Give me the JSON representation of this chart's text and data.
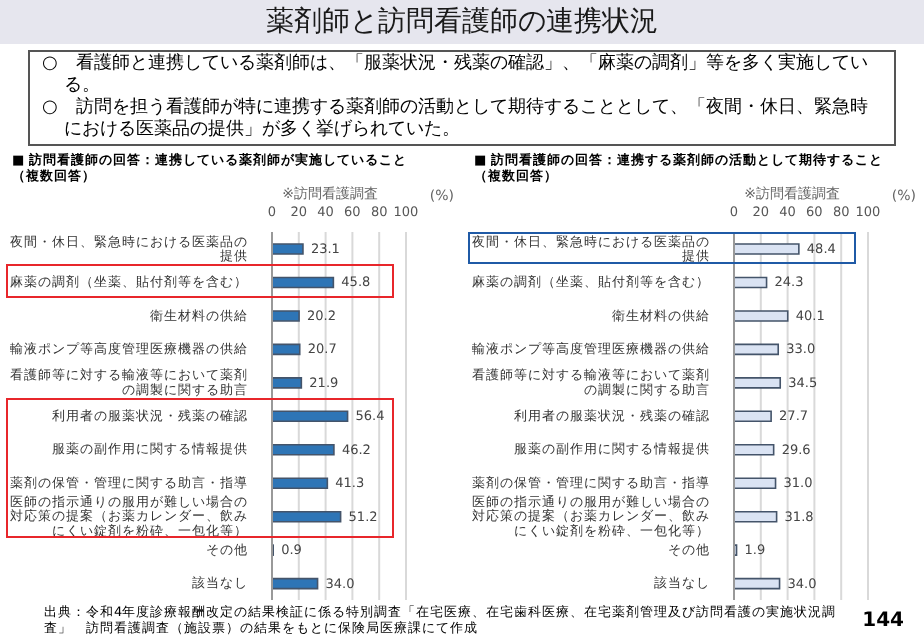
{
  "chart_data": [
    {
      "type": "other",
      "title": "薬剤師と訪問看護師の連携状況",
      "annotations": [
        "○　看護師と連携している薬剤師は、「服薬状況・残薬の確認」、「麻薬の調剤」等を多く実施している。",
        "○　訪問を担う看護師が特に連携する薬剤師の活動として期待することとして、「夜間・休日、緊急時における医薬品の提供」が多く挙げられていた。"
      ]
    },
    {
      "type": "bar",
      "orientation": "horizontal",
      "title": "■ 訪問看護師の回答：連携している薬剤師が実施していること",
      "subtitle": "（複数回答）",
      "xlabel": "(%)",
      "categories": [
        "夜間・休日、緊急時における医薬品の提供",
        "麻薬の調剤（坐薬、貼付剤等を含む）",
        "衛生材料の供給",
        "輸液ポンプ等高度管理医療機器の供給",
        "看護師等に対する輸液等において薬剤の調製に関する助言",
        "利用者の服薬状況・残薬の確認",
        "服薬の副作用に関する情報提供",
        "薬剤の保管・管理に関する助言・指導",
        "医師の指示通りの服用が難しい場合の対応策の提案（お薬カレンダー、飲みにくい錠剤を粉砕、一包化等）",
        "その他",
        "該当なし"
      ],
      "values": [
        23.1,
        45.8,
        20.2,
        20.7,
        21.9,
        56.4,
        46.2,
        41.3,
        51.2,
        0.9,
        34.0
      ],
      "value_labels": [
        "23.1",
        "45.8",
        "20.2",
        "20.7",
        "21.9",
        "56.4",
        "46.2",
        "41.3",
        "51.2",
        "0.9",
        "34.0"
      ],
      "color": "#2e75b6",
      "xlim": [
        0,
        100
      ],
      "xticks": [
        0,
        20,
        40,
        60,
        80,
        100
      ],
      "grid": "x",
      "annotations": [
        "※訪問看護調査",
        "出典：令和4年度診療報酬改定の結果検証に係る特別調査「在宅医療、在宅歯科医療、在宅薬剤管理及び訪問看護の実施状況調査」　訪問看護調査（施設票）の結果をもとに保険局医療課にて作成"
      ]
    },
    {
      "type": "bar",
      "orientation": "horizontal",
      "title": "■ 訪問看護師の回答：連携する薬剤師の活動として期待すること",
      "subtitle": "（複数回答）",
      "xlabel": "(%)",
      "categories": [
        "夜間・休日、緊急時における医薬品の提供",
        "麻薬の調剤（坐薬、貼付剤等を含む）",
        "衛生材料の供給",
        "輸液ポンプ等高度管理医療機器の供給",
        "看護師等に対する輸液等において薬剤の調製に関する助言",
        "利用者の服薬状況・残薬の確認",
        "服薬の副作用に関する情報提供",
        "薬剤の保管・管理に関する助言・指導",
        "医師の指示通りの服用が難しい場合の対応策の提案（お薬カレンダー、飲みにくい錠剤を粉砕、一包化等）",
        "その他",
        "該当なし"
      ],
      "values": [
        48.4,
        24.3,
        40.1,
        33.0,
        34.5,
        27.7,
        29.6,
        31.0,
        31.8,
        1.9,
        34.0
      ],
      "value_labels": [
        "48.4",
        "24.3",
        "40.1",
        "33.0",
        "34.5",
        "27.7",
        "29.6",
        "31.0",
        "31.8",
        "1.9",
        "34.0"
      ],
      "color": "#dae3f3",
      "xlim": [
        0,
        100
      ],
      "xticks": [
        0,
        20,
        40,
        60,
        80,
        100
      ],
      "grid": "x",
      "annotations": [
        "※訪問看護調査",
        "144"
      ]
    }
  ]
}
